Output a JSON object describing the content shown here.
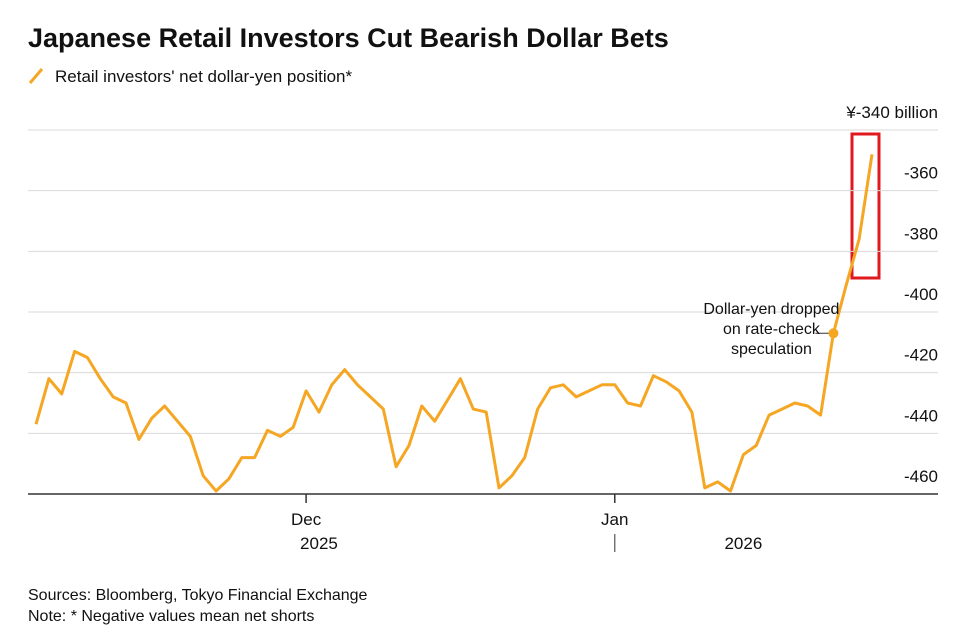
{
  "chart_data": {
    "type": "line",
    "title": "Japanese Retail Investors Cut Bearish Dollar Bets",
    "categories": [
      null,
      null,
      null,
      null,
      null,
      null,
      null,
      null,
      null,
      null,
      null,
      null,
      null,
      null,
      null,
      null,
      null,
      null,
      null,
      null,
      null,
      "Dec",
      null,
      null,
      null,
      null,
      null,
      null,
      null,
      null,
      null,
      null,
      null,
      null,
      null,
      null,
      null,
      null,
      null,
      null,
      null,
      null,
      null,
      null,
      null,
      "Jan",
      null,
      null,
      null,
      null,
      null,
      null,
      null,
      null,
      null,
      null,
      null,
      null,
      null,
      null,
      null,
      null,
      null,
      null,
      null,
      null
    ],
    "year_labels": [
      {
        "index": 22,
        "label": "2025"
      },
      {
        "index": 55,
        "label": "2026"
      }
    ],
    "series": [
      {
        "name": "Retail investors' net dollar-yen position*",
        "color": "#f5a623",
        "values": [
          -437,
          -422,
          -427,
          -413,
          -415,
          -422,
          -428,
          -430,
          -442,
          -435,
          -431,
          -436,
          -441,
          -454,
          -459,
          -455,
          -448,
          -448,
          -439,
          -441,
          -438,
          -426,
          -433,
          -424,
          -419,
          -424,
          -428,
          -432,
          -451,
          -444,
          -431,
          -436,
          -429,
          -422,
          -432,
          -433,
          -458,
          -454,
          -448,
          -432,
          -425,
          -424,
          -428,
          -426,
          -424,
          -424,
          -430,
          -431,
          -421,
          -423,
          -426,
          -433,
          -458,
          -456,
          -459,
          -447,
          -444,
          -434,
          -432,
          -430,
          -431,
          -434,
          -407,
          -391,
          -376,
          -348
        ]
      }
    ],
    "annotation": {
      "index": 62,
      "lines": [
        "Dollar-yen dropped",
        "on rate-check",
        "speculation"
      ]
    },
    "ylim": [
      -460,
      -340
    ],
    "yticks": [
      -460,
      -440,
      -420,
      -400,
      -380,
      -360,
      {
        "value": -340,
        "label": "¥-340 billion"
      }
    ],
    "grid": true,
    "sources": "Sources: Bloomberg, Tokyo Financial Exchange",
    "note": "Note: * Negative values mean net shorts"
  }
}
